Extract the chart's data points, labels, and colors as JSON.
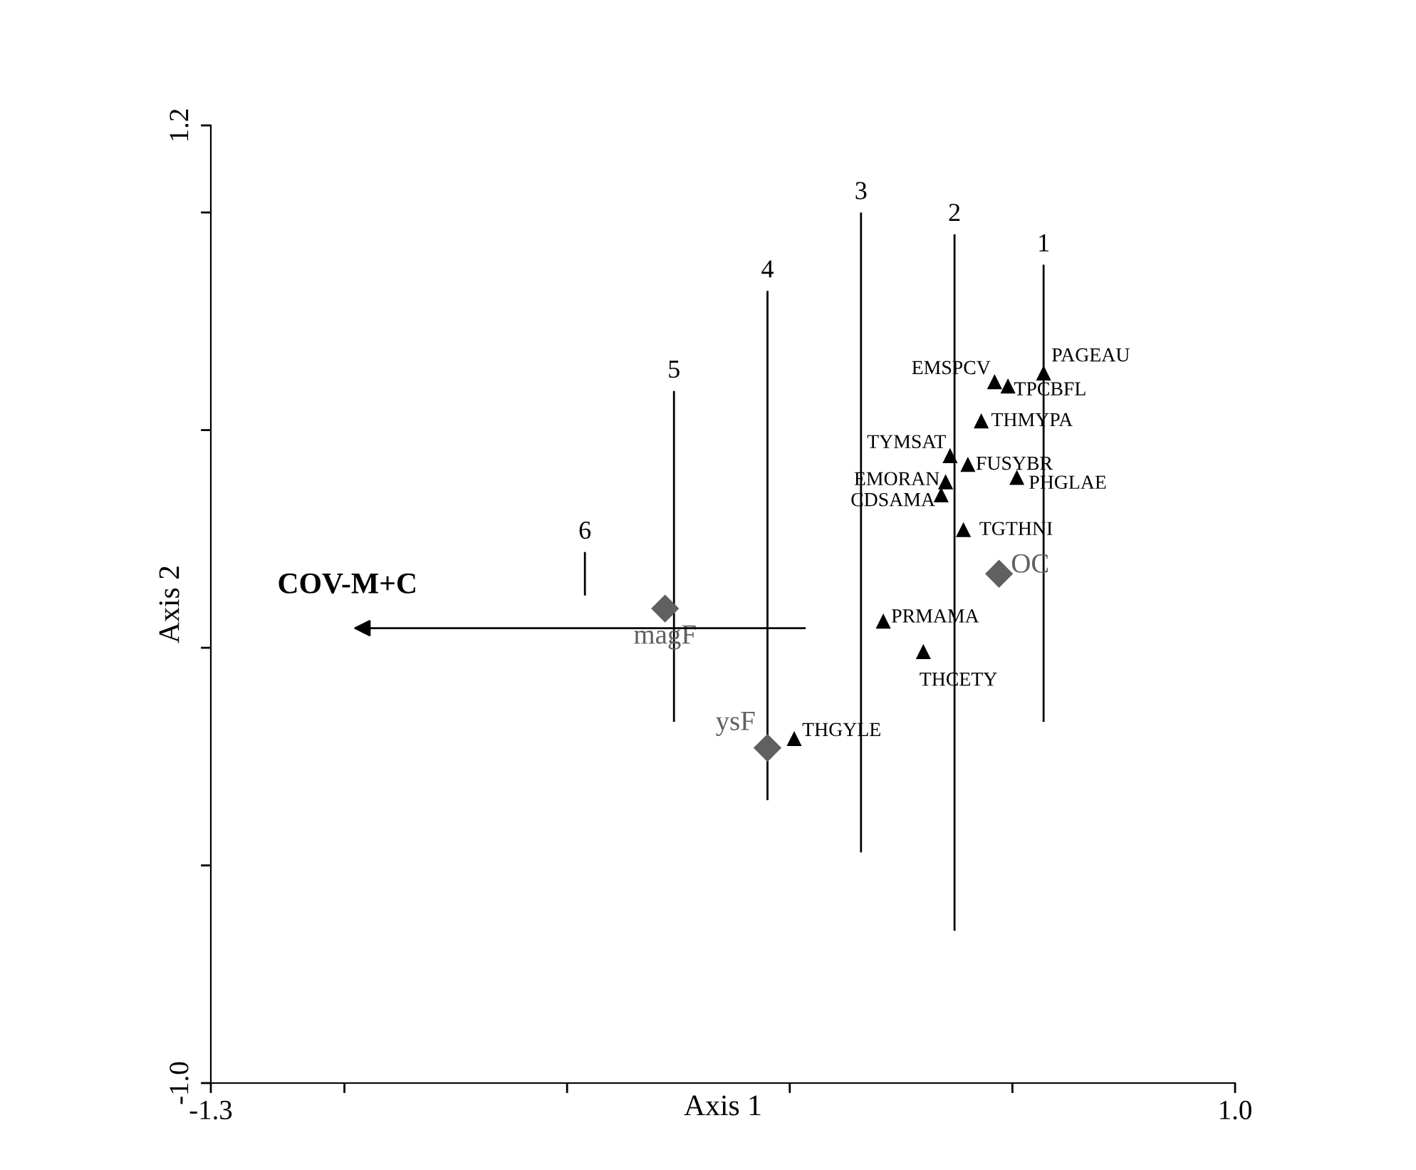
{
  "chart_data": {
    "type": "scatter",
    "xlabel": "Axis 1",
    "ylabel": "Axis 2",
    "xlim": [
      -1.3,
      1.0
    ],
    "ylim": [
      -1.0,
      1.2
    ],
    "xticks": [
      -1.3,
      {
        "value": -1.0,
        "label": null
      },
      {
        "value": -0.5,
        "label": null
      },
      {
        "value": 0.0,
        "label": null
      },
      {
        "value": 0.5,
        "label": null
      },
      {
        "value": 1.0,
        "label": "1.0"
      }
    ],
    "yticks": [
      {
        "value": -1.0,
        "label": "-1.0"
      },
      {
        "value": -0.5,
        "label": null
      },
      {
        "value": 0.0,
        "label": null
      },
      {
        "value": 0.5,
        "label": null
      },
      {
        "value": 1.0,
        "label": null
      },
      1.2
    ],
    "grid": false,
    "legend": false,
    "annotations": [
      "COV-M+C"
    ],
    "series": [
      {
        "type": "line",
        "name": "1",
        "color": "#000000",
        "x": [
          0.57,
          0.57
        ],
        "values": [
          0.88,
          -0.17
        ]
      },
      {
        "type": "line",
        "name": "2",
        "color": "#000000",
        "x": [
          0.37,
          0.37
        ],
        "values": [
          0.95,
          -0.65
        ]
      },
      {
        "type": "line",
        "name": "3",
        "color": "#000000",
        "x": [
          0.16,
          0.16
        ],
        "values": [
          1.0,
          -0.47
        ]
      },
      {
        "type": "line",
        "name": "4",
        "color": "#000000",
        "x": [
          -0.05,
          -0.05
        ],
        "values": [
          0.82,
          -0.35
        ]
      },
      {
        "type": "line",
        "name": "5",
        "color": "#000000",
        "x": [
          -0.26,
          -0.26
        ],
        "values": [
          0.59,
          -0.17
        ]
      },
      {
        "type": "line",
        "name": "6",
        "color": "#000000",
        "x": [
          -0.46,
          -0.46
        ],
        "values": [
          0.22,
          0.12
        ]
      },
      {
        "name": "PAGEAU",
        "color": "#000000",
        "marker": "triangle",
        "x": [
          0.57
        ],
        "values": [
          0.63
        ]
      },
      {
        "name": "EMSPCV",
        "color": "#000000",
        "marker": "triangle",
        "x": [
          0.46
        ],
        "values": [
          0.61
        ]
      },
      {
        "name": "TPCBFL",
        "color": "#000000",
        "marker": "triangle",
        "x": [
          0.49
        ],
        "values": [
          0.6
        ]
      },
      {
        "name": "THMYPA",
        "color": "#000000",
        "marker": "triangle",
        "x": [
          0.43
        ],
        "values": [
          0.52
        ]
      },
      {
        "name": "TYMSAT",
        "color": "#000000",
        "marker": "triangle",
        "x": [
          0.36
        ],
        "values": [
          0.44
        ]
      },
      {
        "name": "FUSYBR",
        "color": "#000000",
        "marker": "triangle",
        "x": [
          0.4
        ],
        "values": [
          0.42
        ]
      },
      {
        "name": "EMORAN",
        "color": "#000000",
        "marker": "triangle",
        "x": [
          0.35
        ],
        "values": [
          0.38
        ]
      },
      {
        "name": "CDSAMA",
        "color": "#000000",
        "marker": "triangle",
        "x": [
          0.34
        ],
        "values": [
          0.35
        ]
      },
      {
        "name": "PHGLAE",
        "color": "#000000",
        "marker": "triangle",
        "x": [
          0.51
        ],
        "values": [
          0.39
        ]
      },
      {
        "name": "TGTHNI",
        "color": "#000000",
        "marker": "triangle",
        "x": [
          0.39
        ],
        "values": [
          0.27
        ]
      },
      {
        "name": "PRMAMA",
        "color": "#000000",
        "marker": "triangle",
        "x": [
          0.21
        ],
        "values": [
          0.06
        ]
      },
      {
        "name": "THCETY",
        "color": "#000000",
        "marker": "triangle",
        "x": [
          0.3
        ],
        "values": [
          -0.01
        ]
      },
      {
        "name": "THGYLE",
        "color": "#000000",
        "marker": "triangle",
        "x": [
          0.01
        ],
        "values": [
          -0.21
        ]
      },
      {
        "name": "OC",
        "color": "#606060",
        "marker": "diamond",
        "x": [
          0.47
        ],
        "values": [
          0.17
        ]
      },
      {
        "name": "magF",
        "color": "#606060",
        "marker": "diamond",
        "x": [
          -0.28
        ],
        "values": [
          0.09
        ]
      },
      {
        "name": "ysF",
        "color": "#606060",
        "marker": "diamond",
        "x": [
          -0.05
        ],
        "values": [
          -0.23
        ]
      }
    ]
  }
}
